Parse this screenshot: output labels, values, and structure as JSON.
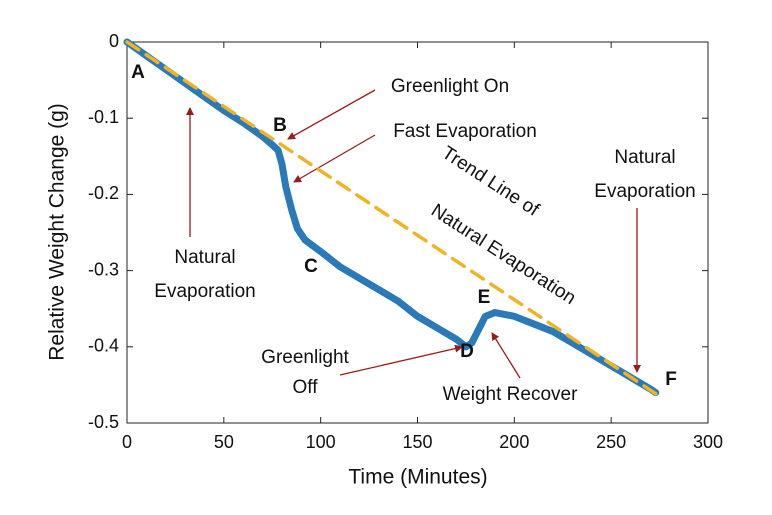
{
  "chart_data": {
    "type": "line",
    "xlabel": "Time (Minutes)",
    "ylabel": "Relative Weight Change (g)",
    "xlim": [
      0,
      300
    ],
    "xticks": [
      0,
      50,
      100,
      150,
      200,
      250,
      300
    ],
    "ylim": [
      -0.5,
      0
    ],
    "yticks": [
      0,
      -0.1,
      -0.2,
      -0.3,
      -0.4,
      -0.5
    ],
    "grid": false,
    "series": [
      {
        "color": "#2a7ab9",
        "x": [
          0,
          10,
          20,
          30,
          40,
          50,
          60,
          70,
          75,
          78,
          80,
          82,
          85,
          88,
          92,
          100,
          110,
          120,
          130,
          140,
          150,
          160,
          170,
          175,
          178,
          182,
          185,
          190,
          200,
          210,
          220,
          230,
          240,
          250,
          260,
          270,
          273
        ],
        "values": [
          0,
          -0.018,
          -0.036,
          -0.054,
          -0.072,
          -0.09,
          -0.106,
          -0.124,
          -0.135,
          -0.142,
          -0.16,
          -0.19,
          -0.22,
          -0.245,
          -0.26,
          -0.275,
          -0.295,
          -0.31,
          -0.325,
          -0.34,
          -0.36,
          -0.375,
          -0.39,
          -0.4,
          -0.395,
          -0.375,
          -0.36,
          -0.355,
          -0.36,
          -0.37,
          -0.38,
          -0.395,
          -0.41,
          -0.425,
          -0.44,
          -0.455,
          -0.46
        ]
      },
      {
        "color": "#f0b323",
        "dashed": true,
        "x": [
          0,
          275
        ],
        "values": [
          0,
          -0.465
        ]
      }
    ],
    "point_labels": [
      "A",
      "B",
      "C",
      "D",
      "E",
      "F"
    ],
    "annotations": [
      "Greenlight On",
      "Fast Evaporation",
      "Trend Line of",
      "Natural Evaporation",
      "Natural",
      "Evaporation",
      "Natural",
      "Evaporation",
      "Greenlight",
      "Off",
      "Weight Recover"
    ]
  }
}
